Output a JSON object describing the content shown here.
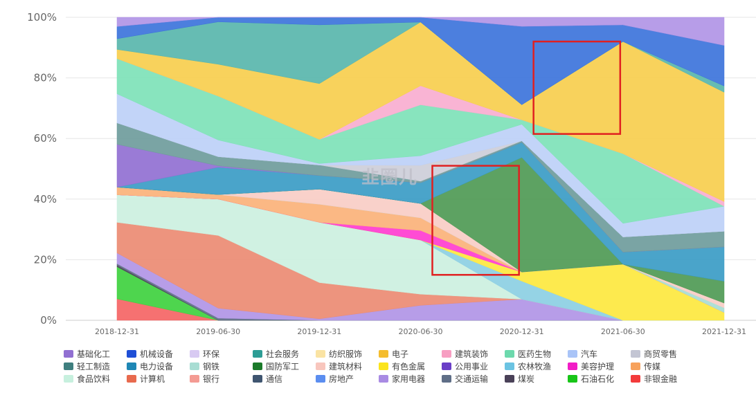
{
  "chart_data": {
    "type": "area",
    "stacked": true,
    "normalized": true,
    "x": [
      "2018-12-31",
      "2019-06-30",
      "2019-12-31",
      "2020-06-30",
      "2020-12-31",
      "2021-06-30",
      "2021-12-31"
    ],
    "y_ticks": [
      "0%",
      "20%",
      "40%",
      "60%",
      "80%",
      "100%"
    ],
    "ylim": [
      0,
      100
    ],
    "legend_placement": "bottom",
    "watermark": "韭圈儿",
    "series": [
      {
        "name": "非银金融",
        "color": "#f56565",
        "values": [
          7,
          0,
          0,
          0,
          0,
          0,
          0
        ]
      },
      {
        "name": "石油石化",
        "color": "#3fd13f",
        "values": [
          10.5,
          0,
          0,
          0,
          0,
          0,
          0
        ]
      },
      {
        "name": "煤炭",
        "color": "#4a4158",
        "values": [
          0.5,
          0,
          0,
          0,
          0,
          0,
          0
        ]
      },
      {
        "name": "交通运输",
        "color": "#5f6e87",
        "values": [
          0.5,
          0.7,
          0,
          0,
          0,
          0,
          0
        ]
      },
      {
        "name": "家用电器",
        "color": "#b195e6",
        "values": [
          3.5,
          3.3,
          0.5,
          4.7,
          7,
          0,
          0
        ]
      },
      {
        "name": "计算机",
        "color": "#ec8b73",
        "values": [
          10,
          24,
          12,
          3.5,
          0,
          0,
          0
        ]
      },
      {
        "name": "食品饮料",
        "color": "#ccf0e0",
        "values": [
          9,
          12,
          20,
          17,
          0,
          0,
          0
        ]
      },
      {
        "name": "农林牧渔",
        "color": "#8ccfe3",
        "values": [
          0,
          0,
          0,
          0,
          6,
          0,
          0
        ]
      },
      {
        "name": "有色金属",
        "color": "#fde83f",
        "values": [
          0,
          0,
          0,
          0,
          3,
          18.5,
          2.5
        ]
      },
      {
        "name": "美容护理",
        "color": "#ff3dd0",
        "values": [
          0,
          0,
          0,
          3,
          0,
          0,
          0
        ]
      },
      {
        "name": "传媒",
        "color": "#fbb27a",
        "values": [
          2.5,
          1.5,
          6,
          4,
          0,
          0,
          0
        ]
      },
      {
        "name": "钢铁",
        "color": "#a8ddd3",
        "values": [
          0,
          0,
          0,
          0,
          0,
          0,
          1.5
        ]
      },
      {
        "name": "建筑材料",
        "color": "#f8cdc6",
        "values": [
          0,
          0,
          5,
          4.5,
          0,
          0,
          1.5
        ]
      },
      {
        "name": "国防军工",
        "color": "#4f9a55",
        "values": [
          0,
          0,
          0,
          0,
          38,
          0,
          7
        ]
      },
      {
        "name": "电力设备",
        "color": "#3b9cc6",
        "values": [
          0,
          9,
          4.5,
          6.5,
          5,
          4,
          11
        ]
      },
      {
        "name": "基础化工",
        "color": "#9170d2",
        "values": [
          14,
          0.5,
          0,
          0,
          0,
          0,
          0
        ]
      },
      {
        "name": "轻工制造",
        "color": "#6f9c9c",
        "values": [
          7,
          3,
          3.5,
          0.5,
          0.5,
          5,
          5
        ]
      },
      {
        "name": "商贸零售",
        "color": "#cdced9",
        "values": [
          0,
          0,
          0,
          5,
          0,
          0,
          0
        ]
      },
      {
        "name": "汽车",
        "color": "#bdd0f7",
        "values": [
          9.5,
          5.5,
          0.5,
          3,
          5.5,
          4.5,
          8
        ]
      },
      {
        "name": "医药生物",
        "color": "#7ee2b8",
        "values": [
          11.5,
          14.5,
          8,
          16,
          1.5,
          23,
          0
        ]
      },
      {
        "name": "建筑装饰",
        "color": "#f8aed0",
        "values": [
          0,
          0,
          0,
          6,
          0,
          0,
          1.5
        ]
      },
      {
        "name": "电子",
        "color": "#f7ce4e",
        "values": [
          3,
          10.5,
          18.5,
          20,
          5,
          37,
          35
        ]
      },
      {
        "name": "社会服务",
        "color": "#59b6ac",
        "values": [
          3.5,
          14,
          19.5,
          0,
          0,
          0,
          2
        ]
      },
      {
        "name": "机械设备",
        "color": "#3d74db",
        "values": [
          4,
          1.5,
          2.5,
          1.5,
          26,
          5.5,
          13
        ]
      },
      {
        "name": "环保",
        "color": "#b195e6",
        "values": [
          3,
          0,
          0,
          0,
          3,
          2.5,
          9
        ]
      }
    ],
    "legend": [
      {
        "name": "基础化工",
        "color": "#9170d2"
      },
      {
        "name": "机械设备",
        "color": "#1f4fd6"
      },
      {
        "name": "环保",
        "color": "#d8caf2"
      },
      {
        "name": "社会服务",
        "color": "#2d9d95"
      },
      {
        "name": "纺织服饰",
        "color": "#fae3a3"
      },
      {
        "name": "电子",
        "color": "#f4bd2e"
      },
      {
        "name": "建筑装饰",
        "color": "#f79ec2"
      },
      {
        "name": "医药生物",
        "color": "#6dd9ad"
      },
      {
        "name": "汽车",
        "color": "#a9c4f7"
      },
      {
        "name": "商贸零售",
        "color": "#c3c5d3"
      },
      {
        "name": "轻工制造",
        "color": "#3f7f7f"
      },
      {
        "name": "电力设备",
        "color": "#1e87b5"
      },
      {
        "name": "钢铁",
        "color": "#a8ddd3"
      },
      {
        "name": "国防军工",
        "color": "#1b7a2a"
      },
      {
        "name": "建筑材料",
        "color": "#f8c6bd"
      },
      {
        "name": "有色金属",
        "color": "#fbe41c"
      },
      {
        "name": "公用事业",
        "color": "#6a3ec7"
      },
      {
        "name": "农林牧渔",
        "color": "#6bc3e2"
      },
      {
        "name": "美容护理",
        "color": "#f21dc6"
      },
      {
        "name": "传媒",
        "color": "#f7a25c"
      },
      {
        "name": "食品饮料",
        "color": "#c7f0de"
      },
      {
        "name": "计算机",
        "color": "#e86a4e"
      },
      {
        "name": "银行",
        "color": "#f49b93"
      },
      {
        "name": "通信",
        "color": "#3f5570"
      },
      {
        "name": "房地产",
        "color": "#5b8ef0"
      },
      {
        "name": "家用电器",
        "color": "#a98be3"
      },
      {
        "name": "交通运输",
        "color": "#5f6e87"
      },
      {
        "name": "煤炭",
        "color": "#4a4158"
      },
      {
        "name": "石油石化",
        "color": "#18c518"
      },
      {
        "name": "非银金融",
        "color": "#f33b3b"
      }
    ],
    "highlight_boxes": [
      {
        "label": "box-1",
        "color": "#e02020",
        "x_from": "2020-06-30",
        "x_to": "2020-12-31",
        "y_from": 15,
        "y_to": 51
      },
      {
        "label": "box-2",
        "color": "#e02020",
        "x_from": "2020-12-31",
        "x_to": "2021-06-30",
        "y_from": 61.5,
        "y_to": 92
      }
    ]
  }
}
